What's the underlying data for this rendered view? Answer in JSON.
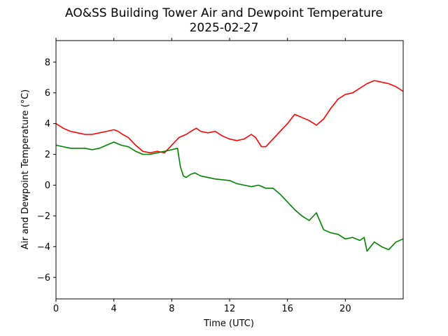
{
  "chart_data": {
    "type": "line",
    "title": "AO&SS Building Tower Air and Dewpoint Temperature",
    "subtitle": "2025-02-27",
    "xlabel": "Time (UTC)",
    "ylabel": "Air and Dewpoint Temperature (°C)",
    "xlim": [
      0,
      24
    ],
    "ylim": [
      -7.4,
      9.4
    ],
    "xticks": [
      0,
      4,
      8,
      12,
      16,
      20
    ],
    "yticks": [
      -6,
      -4,
      -2,
      0,
      2,
      4,
      6,
      8
    ],
    "grid": false,
    "legend": "none",
    "series": [
      {
        "color": "#ff0000",
        "x": [
          0,
          0.5,
          1,
          1.5,
          2,
          2.5,
          3,
          3.5,
          4,
          4.3,
          4.6,
          5,
          5.5,
          6,
          6.5,
          7,
          7.5,
          8,
          8.5,
          9,
          9.5,
          9.7,
          10,
          10.5,
          11,
          11.5,
          12,
          12.5,
          13,
          13.5,
          13.8,
          14.2,
          14.5,
          15,
          15.5,
          16,
          16.5,
          17,
          17.5,
          18,
          18.5,
          19,
          19.5,
          20,
          20.5,
          21,
          21.5,
          22,
          22.5,
          23,
          23.5,
          24
        ],
        "y": [
          4.0,
          3.7,
          3.5,
          3.4,
          3.3,
          3.3,
          3.4,
          3.5,
          3.6,
          3.5,
          3.3,
          3.1,
          2.6,
          2.2,
          2.1,
          2.2,
          2.1,
          2.6,
          3.1,
          3.3,
          3.6,
          3.7,
          3.5,
          3.4,
          3.5,
          3.2,
          3.0,
          2.9,
          3.0,
          3.3,
          3.1,
          2.5,
          2.5,
          3.0,
          3.5,
          4.0,
          4.6,
          4.4,
          4.2,
          3.9,
          4.3,
          5.0,
          5.6,
          5.9,
          6.0,
          6.3,
          6.6,
          6.8,
          6.7,
          6.6,
          6.4,
          6.1
        ]
      },
      {
        "color": "#008000",
        "x": [
          0,
          0.5,
          1,
          1.5,
          2,
          2.5,
          3,
          3.5,
          4,
          4.5,
          5,
          5.5,
          6,
          6.5,
          7,
          7.5,
          8,
          8.4,
          8.6,
          8.8,
          9.0,
          9.3,
          9.6,
          10,
          11,
          12,
          12.5,
          13,
          13.5,
          14,
          14.5,
          15,
          15.5,
          16,
          16.5,
          17,
          17.5,
          18,
          18.5,
          19,
          19.5,
          20,
          20.5,
          21,
          21.3,
          21.5,
          22,
          22.5,
          23,
          23.5,
          24
        ],
        "y": [
          2.6,
          2.5,
          2.4,
          2.4,
          2.4,
          2.3,
          2.4,
          2.6,
          2.8,
          2.6,
          2.5,
          2.2,
          2.0,
          2.0,
          2.1,
          2.2,
          2.3,
          2.4,
          1.2,
          0.6,
          0.5,
          0.7,
          0.8,
          0.6,
          0.4,
          0.3,
          0.1,
          0.0,
          -0.1,
          0.0,
          -0.2,
          -0.2,
          -0.6,
          -1.1,
          -1.6,
          -2.0,
          -2.3,
          -1.8,
          -2.9,
          -3.1,
          -3.2,
          -3.5,
          -3.4,
          -3.6,
          -3.4,
          -4.3,
          -3.7,
          -4.0,
          -4.2,
          -3.7,
          -3.5
        ]
      }
    ]
  }
}
